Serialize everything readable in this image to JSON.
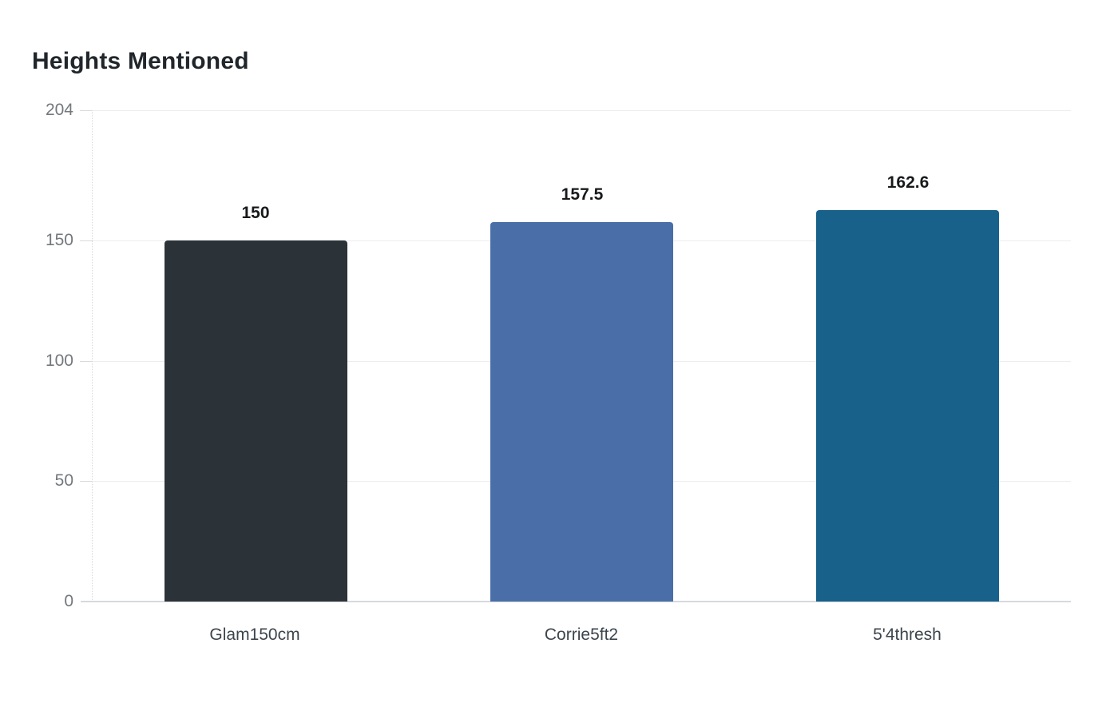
{
  "chart": {
    "title": "Heights Mentioned"
  },
  "chart_data": {
    "type": "bar",
    "title": "Heights Mentioned",
    "categories": [
      "Glam150cm",
      "Corrie5ft2",
      "5'4thresh"
    ],
    "values": [
      150,
      157.5,
      162.6
    ],
    "value_labels": [
      "150",
      "157.5",
      "162.6"
    ],
    "bar_colors": [
      "#2c3338",
      "#4a6ea7",
      "#17618a"
    ],
    "xlabel": "",
    "ylabel": "",
    "ylim": [
      0,
      204
    ],
    "yticks": [
      0,
      50,
      100,
      150,
      204
    ],
    "grid": "horizontal",
    "legend_position": "none",
    "colors": {
      "grid_line": "#ededf0",
      "axis_line": "#d6dade",
      "tick_mark": "#dadada",
      "y_label_text": "#73787d",
      "x_label_text": "#3d454c",
      "value_label_text": "#17191b",
      "title_text": "#20262b",
      "background": "#ffffff"
    }
  }
}
